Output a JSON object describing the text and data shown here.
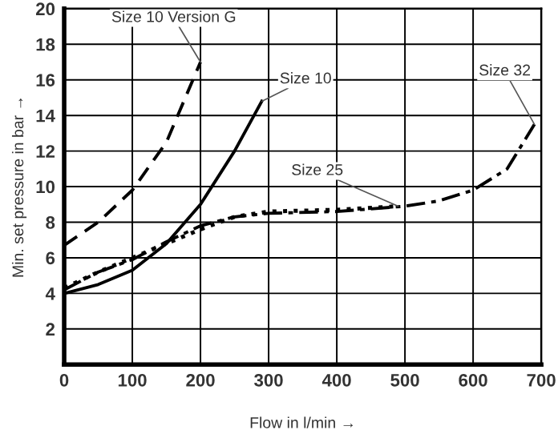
{
  "chart_data": {
    "type": "line",
    "xlabel": "Flow in l/min →",
    "ylabel": "Min. set pressure in bar →",
    "xlim": [
      0,
      700
    ],
    "ylim": [
      0,
      20
    ],
    "xticks": [
      0,
      100,
      200,
      300,
      400,
      500,
      600,
      700
    ],
    "yticks": [
      {
        "value": 0,
        "label": null
      },
      2,
      4,
      6,
      8,
      10,
      12,
      14,
      16,
      18,
      20
    ],
    "grid": true,
    "legend": false,
    "marker": "none",
    "series": [
      {
        "name": "Size 10 Version G",
        "color": "#000000",
        "line_style": "dashed",
        "x": [
          0,
          50,
          100,
          150,
          200
        ],
        "values": [
          6.7,
          8,
          9.8,
          12.5,
          17
        ]
      },
      {
        "name": "Size 10",
        "color": "#000000",
        "line_style": "solid",
        "x": [
          0,
          50,
          100,
          150,
          200,
          250,
          290
        ],
        "values": [
          4,
          4.5,
          5.3,
          6.8,
          9,
          12,
          14.8
        ]
      },
      {
        "name": "Size 25",
        "color": "#000000",
        "line_style": "dotted",
        "x": [
          0,
          50,
          100,
          150,
          200,
          250,
          300,
          400,
          490
        ],
        "values": [
          4.3,
          5.2,
          6,
          6.8,
          7.6,
          8.3,
          8.6,
          8.7,
          8.9
        ]
      },
      {
        "name": "Size 32",
        "color": "#000000",
        "line_style": "dashdot",
        "x": [
          0,
          50,
          100,
          150,
          200,
          250,
          300,
          400,
          500,
          550,
          600,
          650,
          690
        ],
        "values": [
          4.2,
          5.2,
          5.9,
          6.9,
          7.8,
          8.3,
          8.5,
          8.6,
          8.9,
          9.2,
          9.8,
          11,
          13.5
        ]
      }
    ]
  }
}
